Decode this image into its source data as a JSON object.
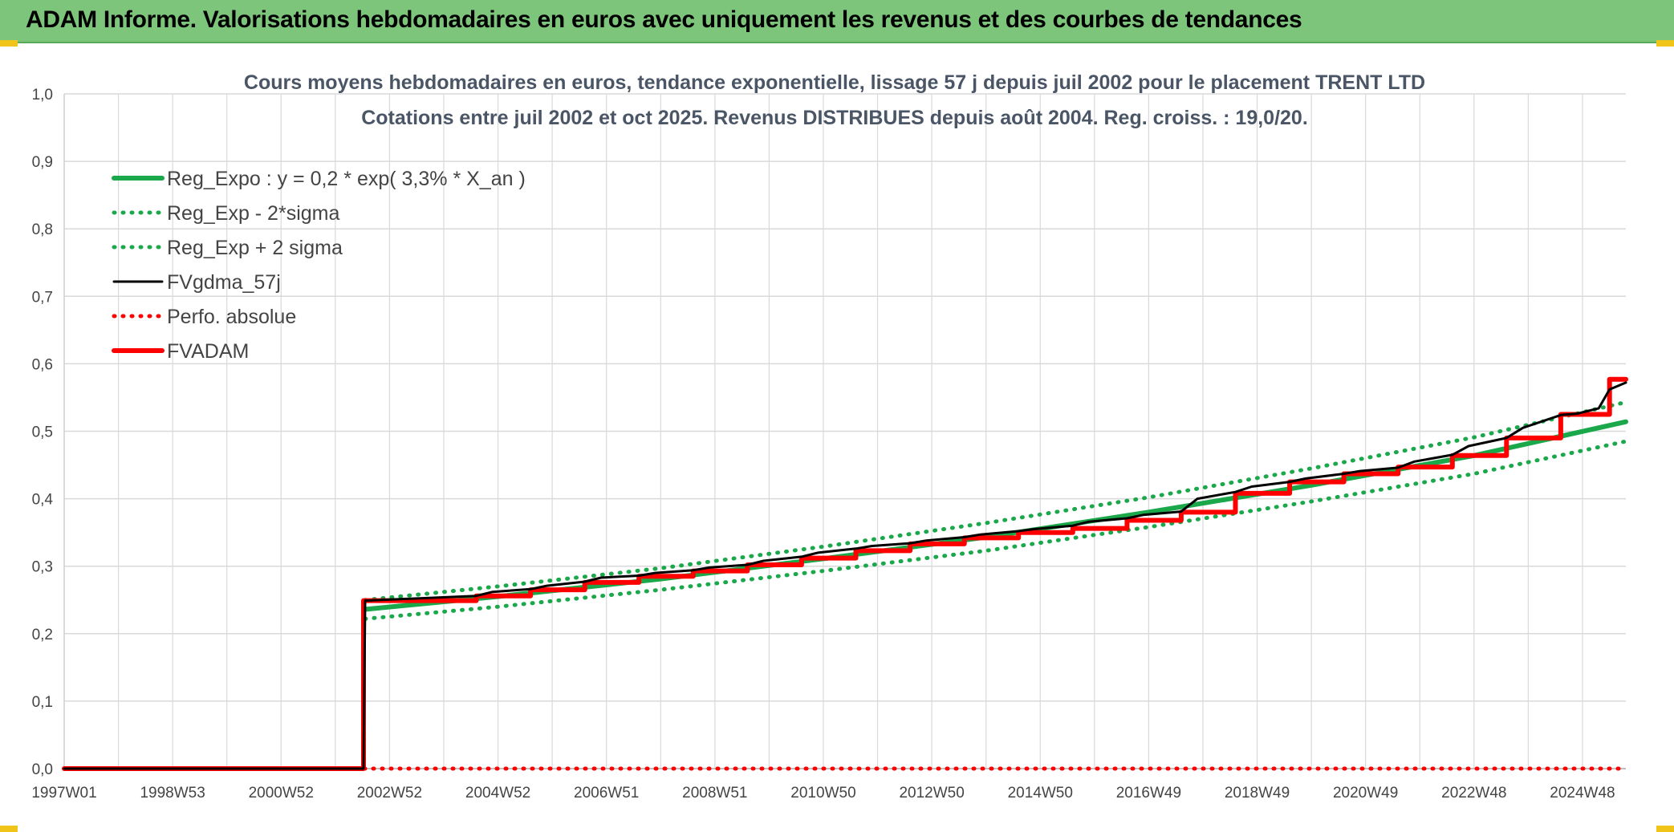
{
  "banner": {
    "title": "ADAM Informe. Valorisations hebdomadaires en euros avec uniquement les revenus et des courbes de tendances"
  },
  "colors": {
    "banner_bg": "#7cc57b",
    "corner_accent": "#f0c419",
    "trend_green": "#1aa84b",
    "series_black": "#000000",
    "series_red": "#ff0000",
    "grid": "#d9d9d9"
  },
  "chart_data": {
    "type": "line",
    "title": "Cours moyens hebdomadaires en euros, tendance exponentielle, lissage 57 j depuis juil 2002 pour le placement TRENT LTD",
    "subtitle": "Cotations entre juil 2002 et oct 2025. Revenus DISTRIBUES depuis août 2004. Reg. croiss. : 19,0/20.",
    "xlabel": "",
    "ylabel": "",
    "ylim": [
      0,
      1.0
    ],
    "xlim": [
      1997.0,
      2025.8
    ],
    "grid": true,
    "legend_position": "top-left",
    "y_ticks": [
      "0,0",
      "0,1",
      "0,2",
      "0,3",
      "0,4",
      "0,5",
      "0,6",
      "0,7",
      "0,8",
      "0,9",
      "1,0"
    ],
    "x_ticks": [
      {
        "label": "1997W01",
        "x": 1997.0
      },
      {
        "label": "1998W53",
        "x": 1999.0
      },
      {
        "label": "2000W52",
        "x": 2001.0
      },
      {
        "label": "2002W52",
        "x": 2003.0
      },
      {
        "label": "2004W52",
        "x": 2005.0
      },
      {
        "label": "2006W51",
        "x": 2007.0
      },
      {
        "label": "2008W51",
        "x": 2009.0
      },
      {
        "label": "2010W50",
        "x": 2011.0
      },
      {
        "label": "2012W50",
        "x": 2013.0
      },
      {
        "label": "2014W50",
        "x": 2015.0
      },
      {
        "label": "2016W49",
        "x": 2017.0
      },
      {
        "label": "2018W49",
        "x": 2019.0
      },
      {
        "label": "2020W49",
        "x": 2021.0
      },
      {
        "label": "2022W48",
        "x": 2023.0
      },
      {
        "label": "2024W48",
        "x": 2025.0
      }
    ],
    "series": [
      {
        "name": "Reg_Expo : y = 0,2 * exp( 3,3% *  X_an )",
        "style": "solid-thick",
        "color": "#1aa84b",
        "x": [
          2002.55,
          2005,
          2008,
          2011,
          2014,
          2017,
          2020,
          2023,
          2025.8
        ],
        "y": [
          0.236,
          0.255,
          0.281,
          0.311,
          0.343,
          0.38,
          0.42,
          0.464,
          0.514
        ]
      },
      {
        "name": "Reg_Exp - 2*sigma",
        "style": "dotted",
        "color": "#1aa84b",
        "x": [
          2002.55,
          2005,
          2008,
          2011,
          2014,
          2017,
          2020,
          2023,
          2025.8
        ],
        "y": [
          0.222,
          0.24,
          0.265,
          0.293,
          0.323,
          0.358,
          0.396,
          0.437,
          0.485
        ]
      },
      {
        "name": "Reg_Exp + 2 sigma",
        "style": "dotted",
        "color": "#1aa84b",
        "x": [
          2002.55,
          2005,
          2008,
          2011,
          2014,
          2017,
          2020,
          2023,
          2025.8
        ],
        "y": [
          0.25,
          0.27,
          0.297,
          0.329,
          0.364,
          0.402,
          0.445,
          0.491,
          0.543
        ]
      },
      {
        "name": "FVgdma_57j",
        "style": "solid",
        "color": "#000000",
        "x": [
          1997.0,
          2002.52,
          2002.55,
          2004.6,
          2004.9,
          2005.6,
          2005.9,
          2006.6,
          2006.9,
          2007.6,
          2007.9,
          2008.6,
          2008.9,
          2009.6,
          2009.9,
          2010.6,
          2010.9,
          2011.6,
          2011.9,
          2012.6,
          2012.9,
          2013.6,
          2013.9,
          2014.6,
          2014.9,
          2015.6,
          2015.9,
          2016.6,
          2016.9,
          2017.6,
          2017.9,
          2018.6,
          2018.9,
          2019.6,
          2019.9,
          2020.6,
          2020.9,
          2021.6,
          2021.9,
          2022.6,
          2022.9,
          2023.6,
          2023.9,
          2024.6,
          2024.9,
          2025.3,
          2025.5,
          2025.8
        ],
        "y": [
          0.0,
          0.0,
          0.249,
          0.256,
          0.262,
          0.266,
          0.271,
          0.277,
          0.283,
          0.286,
          0.29,
          0.294,
          0.298,
          0.302,
          0.308,
          0.314,
          0.32,
          0.326,
          0.33,
          0.334,
          0.338,
          0.343,
          0.347,
          0.352,
          0.355,
          0.36,
          0.366,
          0.371,
          0.376,
          0.381,
          0.4,
          0.41,
          0.418,
          0.425,
          0.43,
          0.437,
          0.441,
          0.446,
          0.455,
          0.465,
          0.478,
          0.49,
          0.505,
          0.524,
          0.526,
          0.534,
          0.562,
          0.572
        ]
      },
      {
        "name": "Perfo. absolue",
        "style": "dotted",
        "color": "#ff0000",
        "x": [
          1997.0,
          2002.52,
          2002.52,
          2025.8
        ],
        "y": [
          0.0,
          0.0,
          0.0,
          0.0
        ]
      },
      {
        "name": "FVADAM",
        "style": "step-thick",
        "color": "#ff0000",
        "x": [
          1997.0,
          2002.52,
          2004.6,
          2005.6,
          2006.6,
          2007.6,
          2008.6,
          2009.6,
          2010.6,
          2011.6,
          2012.6,
          2013.6,
          2014.6,
          2015.6,
          2016.6,
          2017.6,
          2018.6,
          2019.6,
          2020.6,
          2021.6,
          2022.6,
          2023.6,
          2024.6,
          2025.5,
          2025.8
        ],
        "y": [
          0.0,
          0.249,
          0.256,
          0.265,
          0.276,
          0.285,
          0.293,
          0.302,
          0.312,
          0.323,
          0.333,
          0.342,
          0.35,
          0.356,
          0.368,
          0.38,
          0.408,
          0.425,
          0.437,
          0.447,
          0.464,
          0.49,
          0.525,
          0.577,
          0.577
        ]
      }
    ]
  }
}
